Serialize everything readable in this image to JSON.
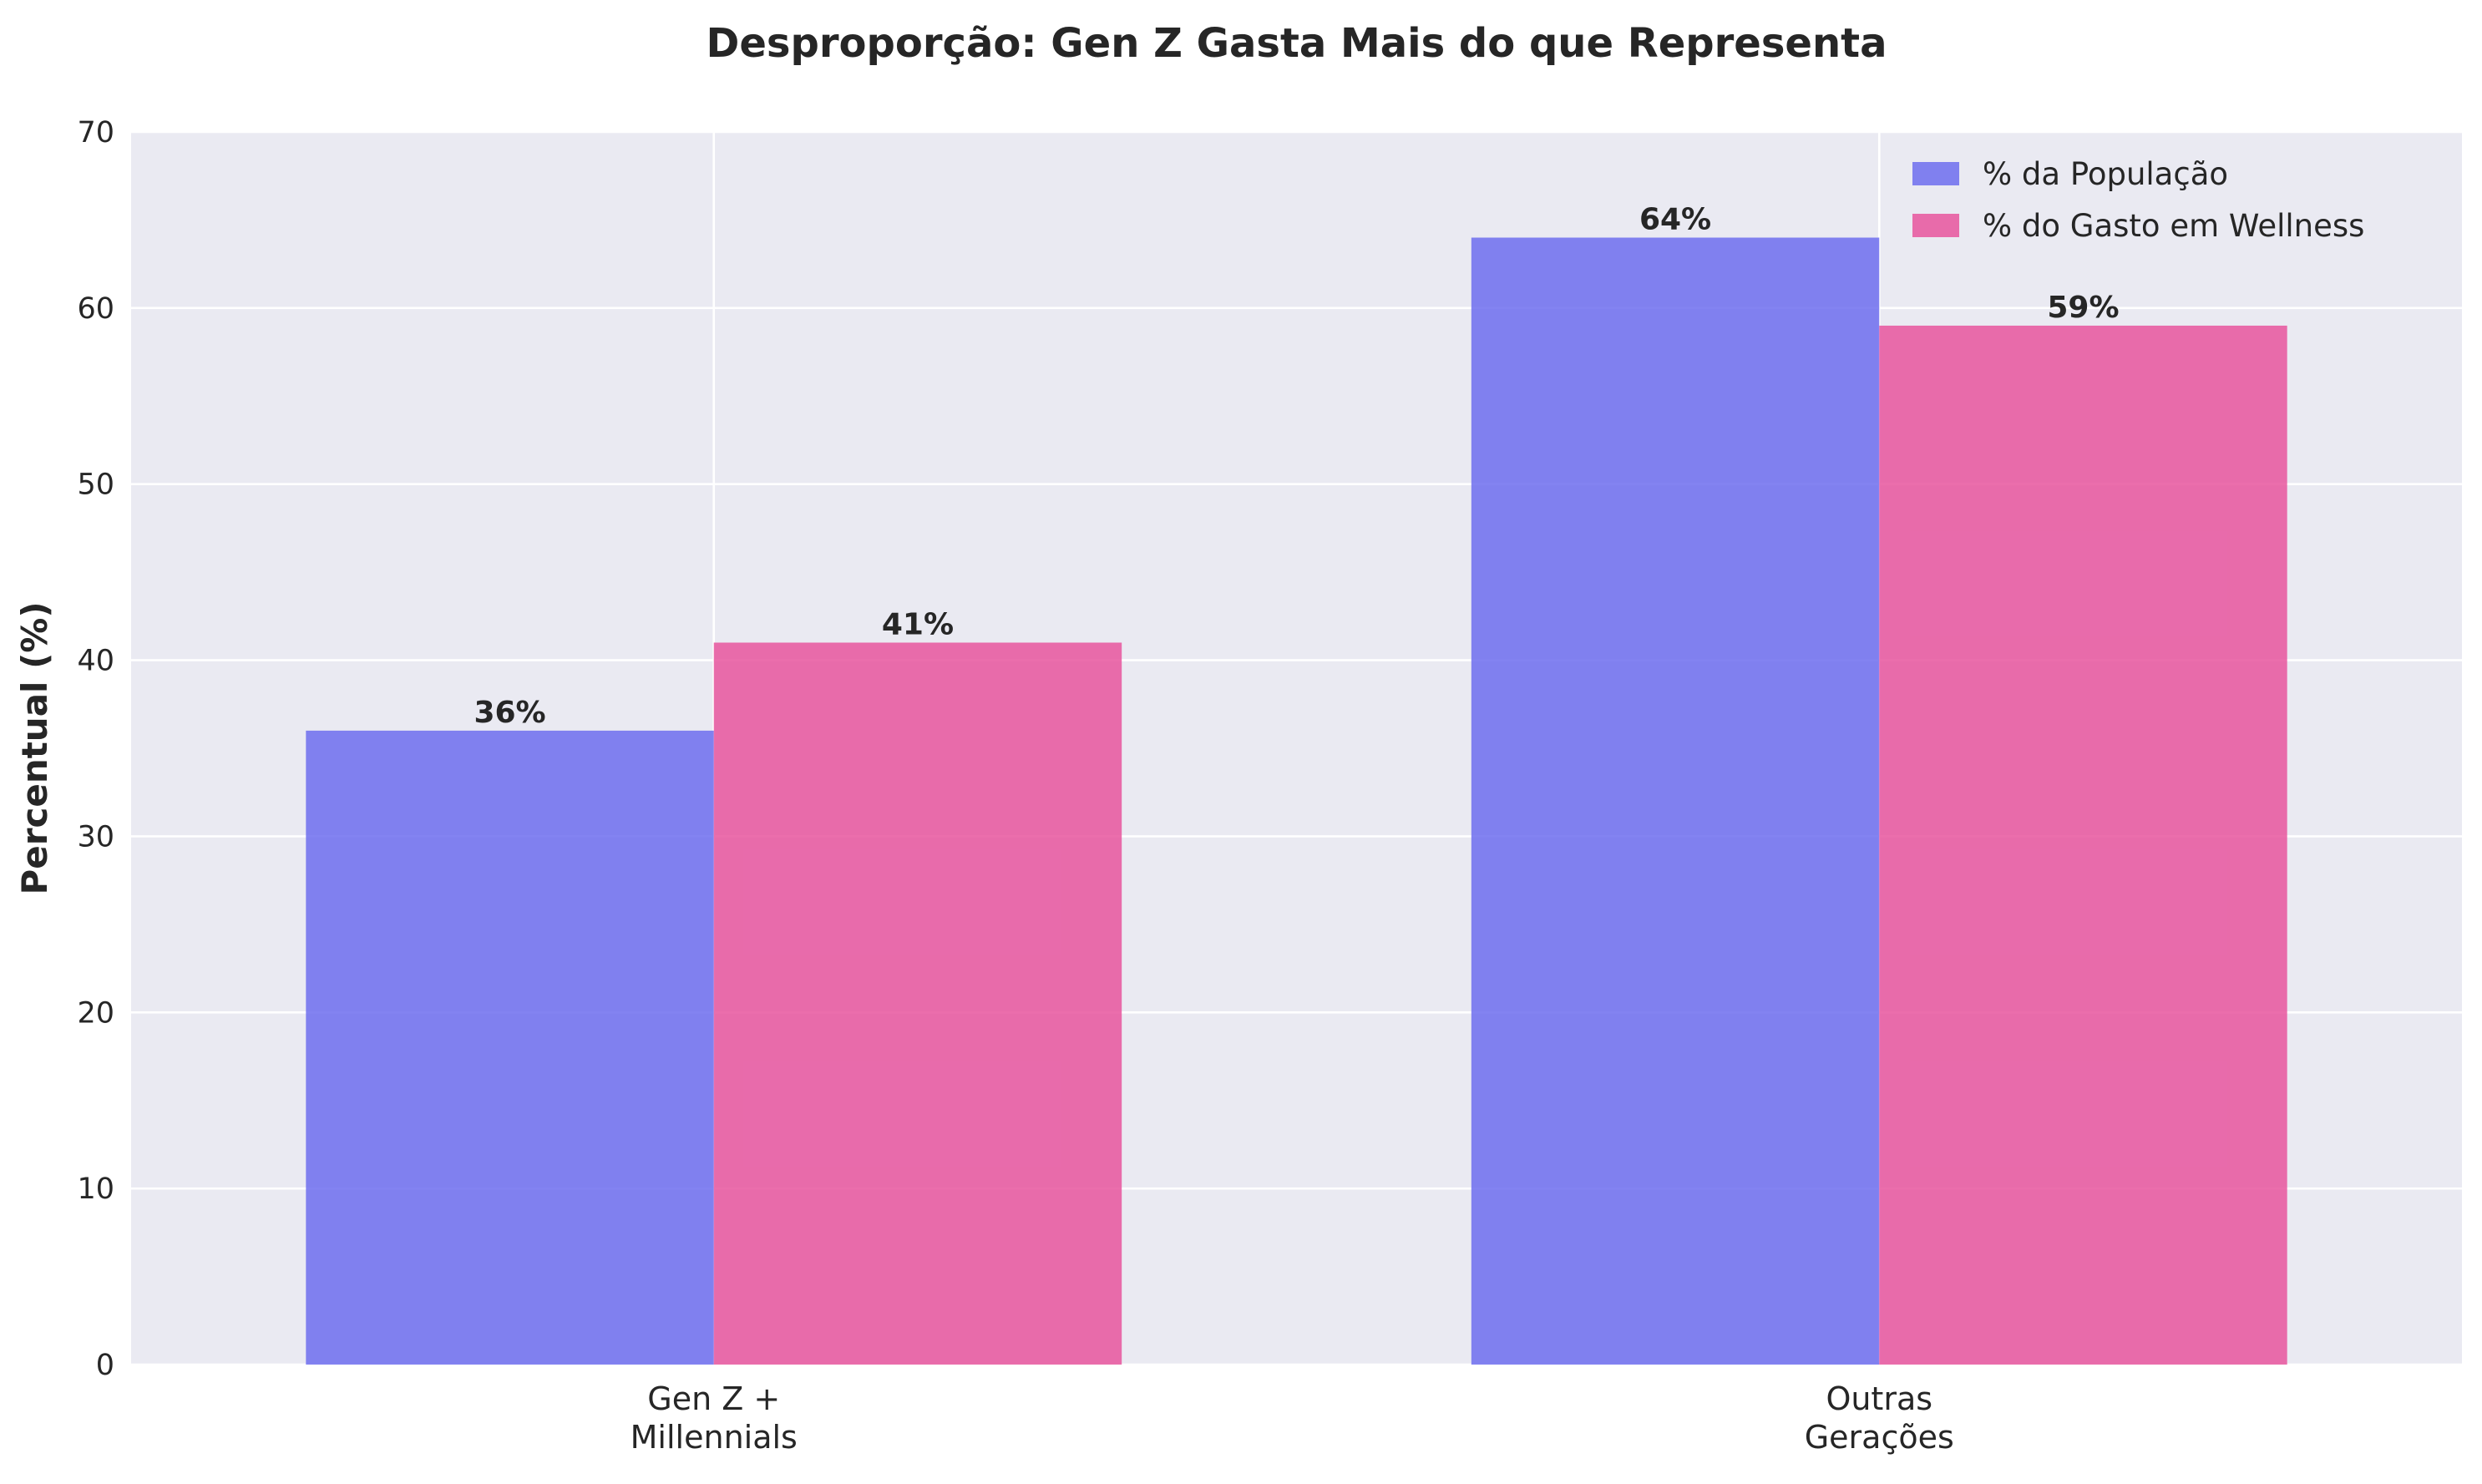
{
  "chart_data": {
    "type": "bar",
    "title": "Desproporção: Gen Z Gasta Mais do que Representa",
    "xlabel": "",
    "ylabel": "Percentual (%)",
    "categories": [
      [
        "Gen Z +",
        "Millennials"
      ],
      [
        "Outras",
        "Gerações"
      ]
    ],
    "series": [
      {
        "name": "% da População",
        "values": [
          36,
          64
        ],
        "labels": [
          "36%",
          "64%"
        ],
        "color": "#6d6dee"
      },
      {
        "name": "% do Gasto em Wellness",
        "values": [
          41,
          59
        ],
        "labels": [
          "41%",
          "59%"
        ],
        "color": "#e8559e"
      }
    ],
    "ylim": [
      0,
      70
    ],
    "yticks": [
      0,
      10,
      20,
      30,
      40,
      50,
      60,
      70
    ],
    "grid": true,
    "legend_position": "top-right",
    "background": "#eaeaf2",
    "text_color": "#262626",
    "grid_color": "#ffffff"
  }
}
